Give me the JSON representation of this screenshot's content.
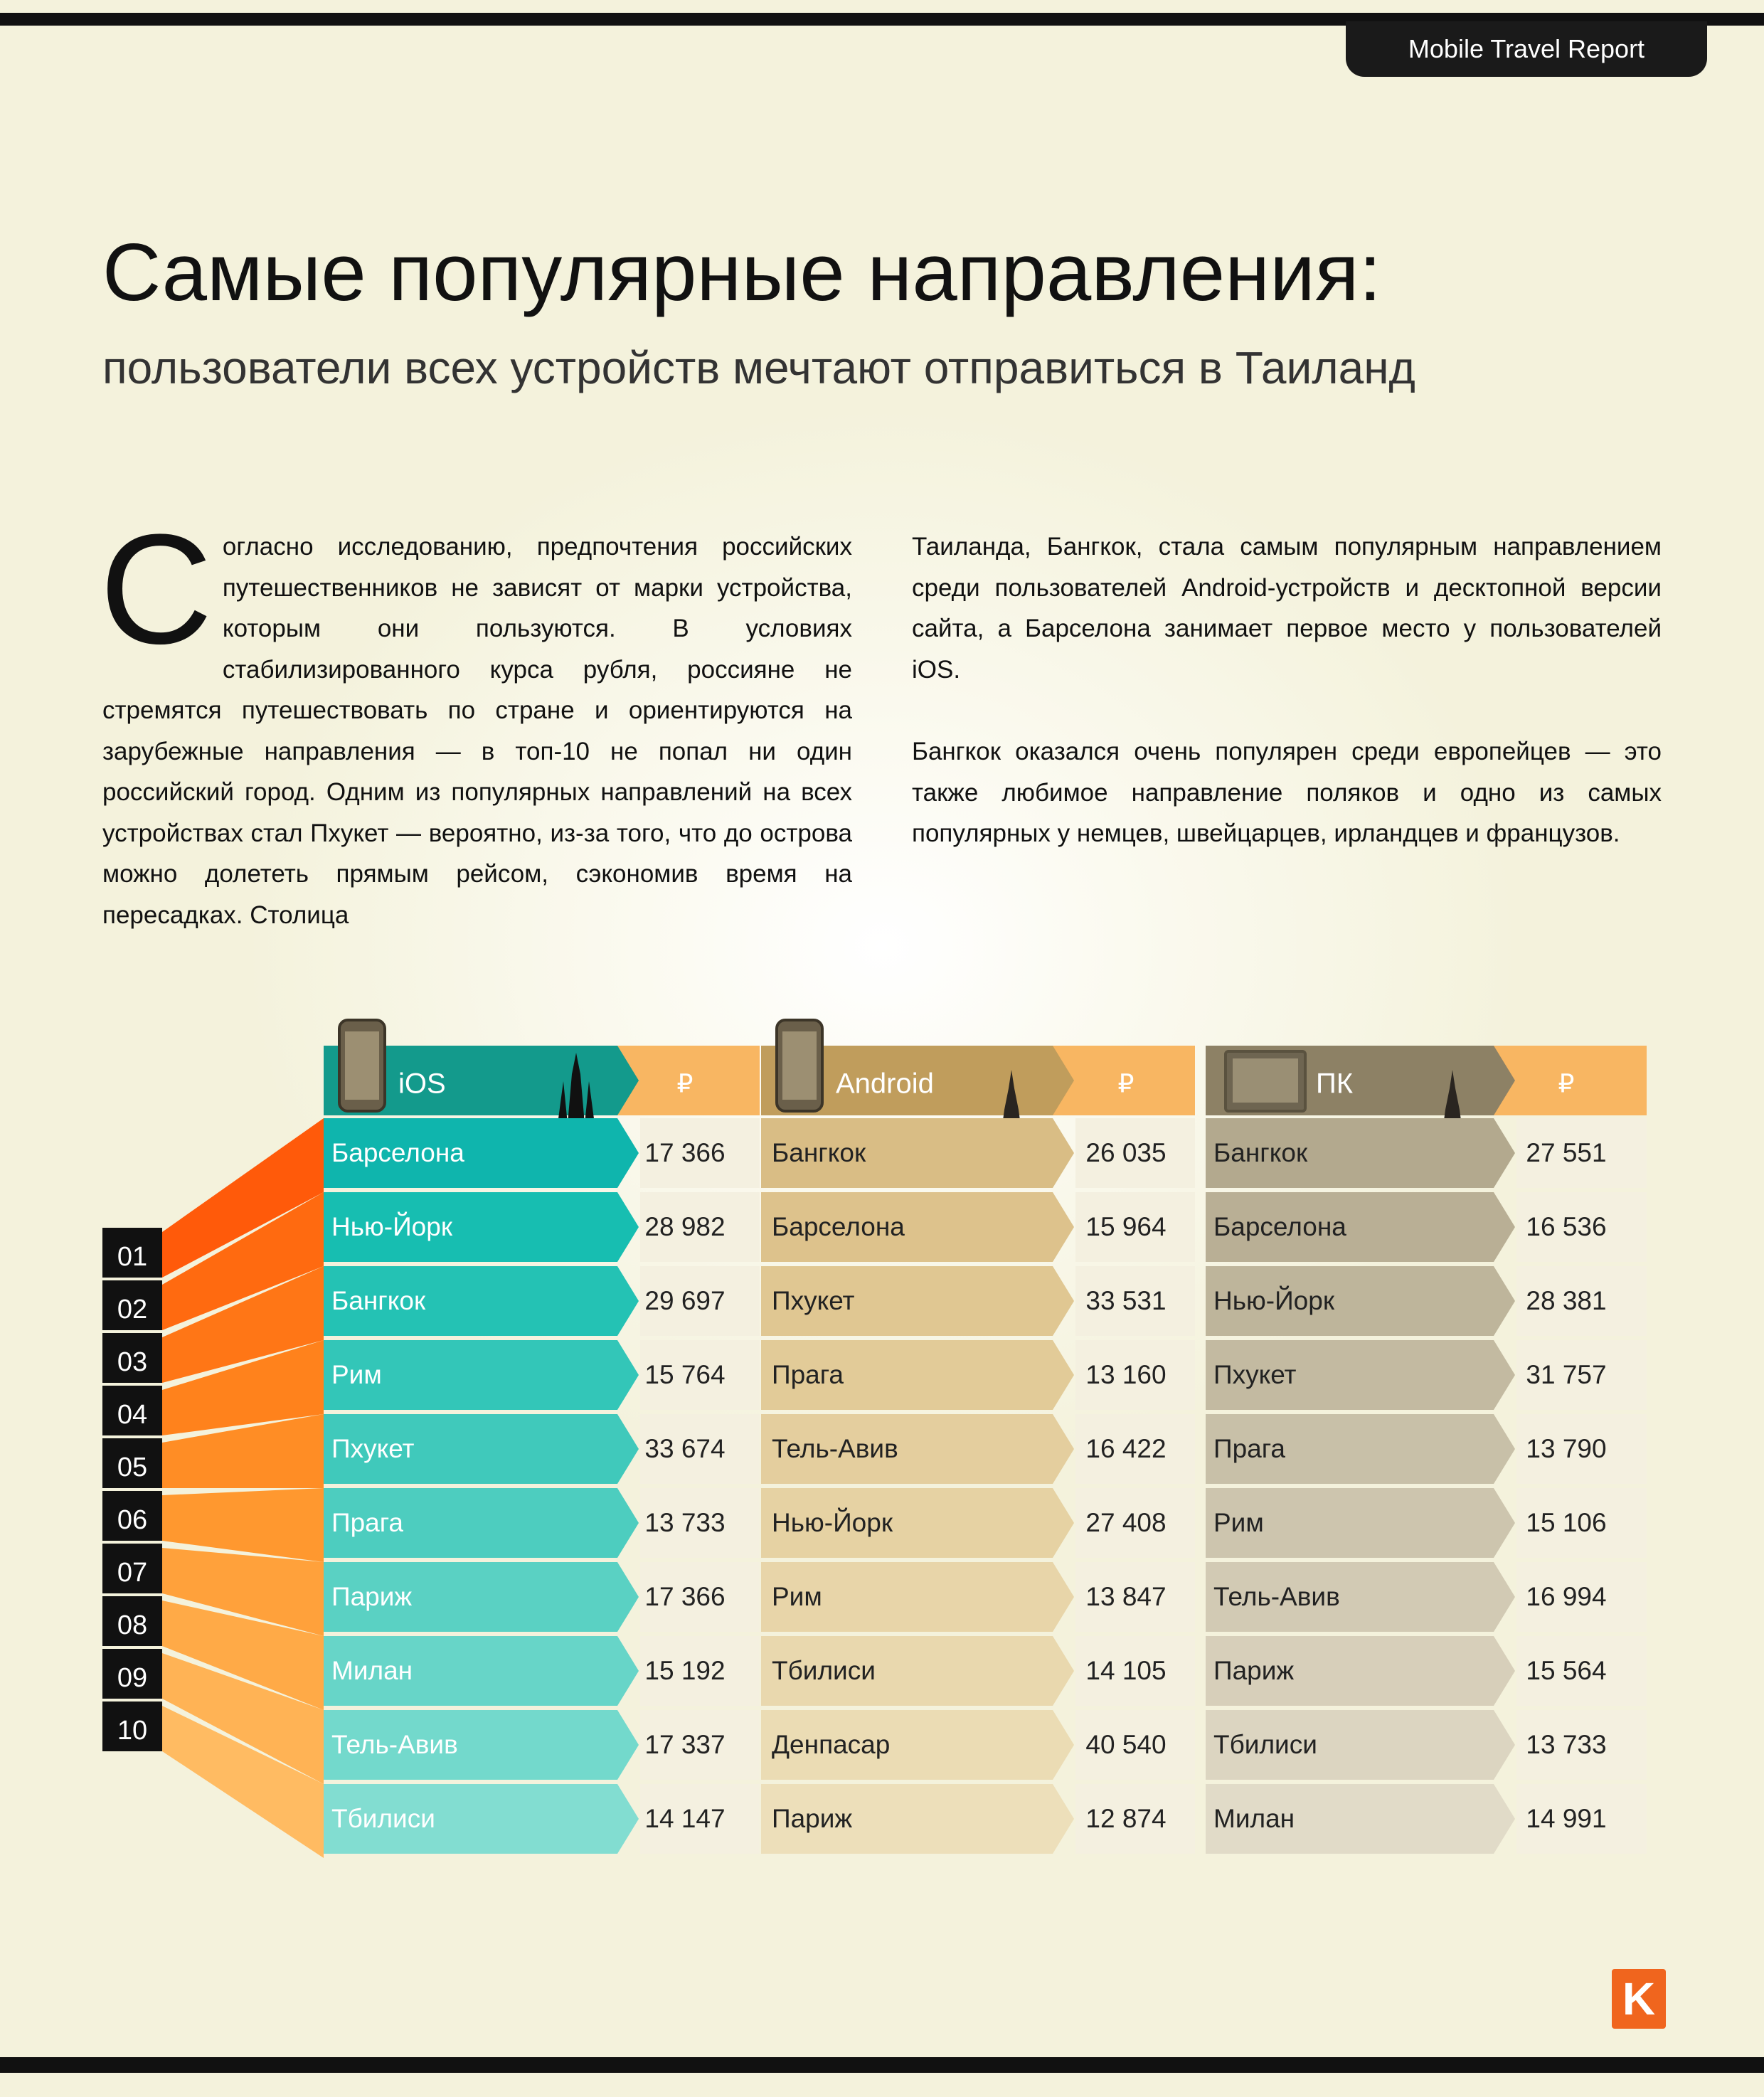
{
  "header": {
    "report_tab": "Mobile Travel Report"
  },
  "title": "Самые популярные направления:",
  "subtitle": "пользователи всех устройств мечтают отправиться в Таиланд",
  "body": {
    "dropcap": "С",
    "col1_text": "огласно исследованию, предпочтения российских путешественников не зависят от марки устройства, которым они пользуются. В условиях стабилизированного курса рубля, россияне не стремятся путешествовать по стране и ориентируются  на зарубежные направления — в топ-10 не попал ни один российский город. Одним из популярных направлений на всех устройствах стал Пхукет — вероятно, из-за того, что до острова можно долететь прямым рейсом, сэкономив время на пересадках.  Столица",
    "col2_p1": "Таиланда, Бангкок, стала самым популярным направлением среди пользователей Android-устройств и десктопной версии сайта, а Барселона занимает первое место у пользователей iOS.",
    "col2_p2": "Бангкок оказался очень популярен среди европейцев — это также любимое направление поляков и одно из самых популярных у немцев, швейцарцев, ирландцев и французов."
  },
  "ranks": [
    "01",
    "02",
    "03",
    "04",
    "05",
    "06",
    "07",
    "08",
    "09",
    "10"
  ],
  "chart_data": {
    "type": "table",
    "columns": [
      {
        "platform": "iOS",
        "currency": "₽",
        "icon": "phone-icon",
        "landmark": "sagrada-familia-icon",
        "head_color": "#139a8c",
        "row_colors": [
          "#0fb5ad",
          "#17beb1",
          "#24c2b4",
          "#33c6b8",
          "#40c9bb",
          "#4dcdbf",
          "#5ad1c3",
          "#67d5c8",
          "#73d9cc",
          "#82ddd1"
        ],
        "cities": [
          "Барселона",
          "Нью-Йорк",
          "Бангкок",
          "Рим",
          "Пхукет",
          "Прага",
          "Париж",
          "Милан",
          "Тель-Авив",
          "Тбилиси"
        ],
        "prices": [
          "17 366",
          "28 982",
          "29 697",
          "15 764",
          "33 674",
          "13 733",
          "17 366",
          "15 192",
          "17 337",
          "14 147"
        ]
      },
      {
        "platform": "Android",
        "currency": "₽",
        "icon": "phone-icon",
        "landmark": "thai-temple-icon",
        "head_color": "#c09d5c",
        "row_colors": [
          "#d9bd85",
          "#ddc28c",
          "#e0c792",
          "#e2cb98",
          "#e4ce9e",
          "#e6d2a3",
          "#e8d5a9",
          "#e9d8ae",
          "#ebdcb4",
          "#eddfba"
        ],
        "cities": [
          "Бангкок",
          "Барселона",
          "Пхукет",
          "Прага",
          "Тель-Авив",
          "Нью-Йорк",
          "Рим",
          "Тбилиси",
          "Денпасар",
          "Париж"
        ],
        "prices": [
          "26 035",
          "15 964",
          "33 531",
          "13 160",
          "16 422",
          "27 408",
          "13 847",
          "14 105",
          "40 540",
          "12 874"
        ]
      },
      {
        "platform": "ПК",
        "currency": "₽",
        "icon": "monitor-icon",
        "landmark": "thai-temple-icon",
        "head_color": "#8d8165",
        "row_colors": [
          "#b3a98e",
          "#b9af95",
          "#beb59b",
          "#c3baa1",
          "#c8c0a8",
          "#cdc5ae",
          "#d2cab4",
          "#d7cfba",
          "#dcd5c1",
          "#e1dbc8"
        ],
        "cities": [
          "Бангкок",
          "Барселона",
          "Нью-Йорк",
          "Пхукет",
          "Прага",
          "Рим",
          "Тель-Авив",
          "Париж",
          "Тбилиси",
          "Милан"
        ],
        "prices": [
          "27 551",
          "16 536",
          "28 381",
          "31 757",
          "13 790",
          "15 106",
          "16 994",
          "15 564",
          "13 733",
          "14 991"
        ]
      }
    ]
  },
  "colors": {
    "price_head": "#f8b662",
    "price_cell": "#f4f0e0",
    "rank_box": "#111111",
    "fan_colors": [
      "#ff5a0a",
      "#ff6a10",
      "#ff7616",
      "#ff821c",
      "#ff8d25",
      "#ff982f",
      "#ffa13b",
      "#ffaa47",
      "#ffb355",
      "#ffbb62"
    ]
  },
  "footer": {
    "logo_letter": "K"
  }
}
